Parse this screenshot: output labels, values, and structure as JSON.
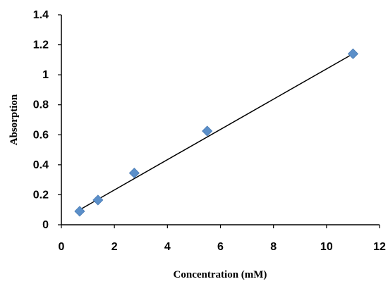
{
  "chart_data": {
    "type": "scatter",
    "title": "",
    "xlabel": "Concentration (mM)",
    "ylabel": "Absorption",
    "xlim": [
      0,
      12
    ],
    "ylim": [
      0,
      1.4
    ],
    "x_ticks": [
      "0",
      "2",
      "4",
      "6",
      "8",
      "10",
      "12"
    ],
    "y_ticks": [
      "0",
      "0.2",
      "0.4",
      "0.6",
      "0.8",
      "1",
      "1.2",
      "1.4"
    ],
    "grid": false,
    "legend": "none",
    "series": [
      {
        "marker": "diamond",
        "color": "#5b8fc9",
        "x": [
          0.69,
          1.38,
          2.75,
          5.5,
          11.0
        ],
        "y": [
          0.09,
          0.165,
          0.345,
          0.625,
          1.14
        ]
      }
    ],
    "trendline": {
      "type": "linear",
      "color": "#000000",
      "x": [
        0.69,
        11.0
      ],
      "y": [
        0.1,
        1.14
      ]
    }
  }
}
